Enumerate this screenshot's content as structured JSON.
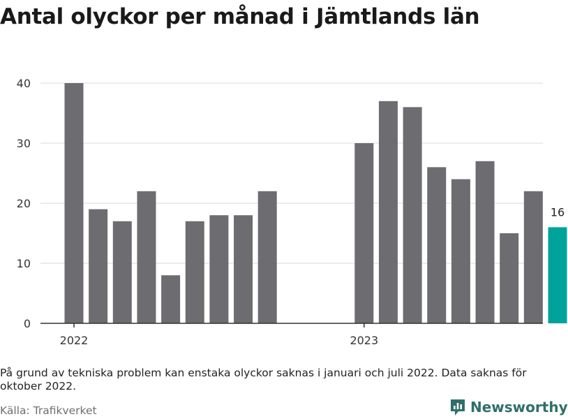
{
  "header": {
    "title": "Antal olyckor per månad i Jämtlands län"
  },
  "chart_data": {
    "type": "bar",
    "title": "Antal olyckor per månad i Jämtlands län",
    "xlabel": "",
    "ylabel": "",
    "ylim": [
      0,
      40
    ],
    "yticks": [
      "0",
      "10",
      "20",
      "30",
      "40"
    ],
    "xticks": [
      "2022",
      "2023"
    ],
    "grid": true,
    "colors": {
      "bar": "#6d6c71",
      "highlight": "#00a39a",
      "grid": "#d9d9d9",
      "axis": "#333333"
    },
    "categories": [
      "2022-01",
      "2022-02",
      "2022-03",
      "2022-04",
      "2022-05",
      "2022-06",
      "2022-07",
      "2022-08",
      "2022-09",
      "2022-10",
      "2022-11",
      "2022-12",
      "2023-01",
      "2023-02",
      "2023-03",
      "2023-04",
      "2023-05",
      "2023-06",
      "2023-07",
      "2023-08",
      "2023-09"
    ],
    "values": [
      40,
      19,
      17,
      22,
      8,
      17,
      18,
      18,
      22,
      null,
      null,
      null,
      30,
      37,
      36,
      26,
      24,
      27,
      15,
      22,
      16
    ],
    "highlight_index": 20,
    "data_labels": [
      {
        "index": 20,
        "text": "16"
      }
    ]
  },
  "footer": {
    "note": "På grund av tekniska problem kan enstaka olyckor saknas i januari och juli 2022. Data saknas för oktober 2022.",
    "source": "Källa: Trafikverket",
    "brand": "Newsworthy"
  }
}
